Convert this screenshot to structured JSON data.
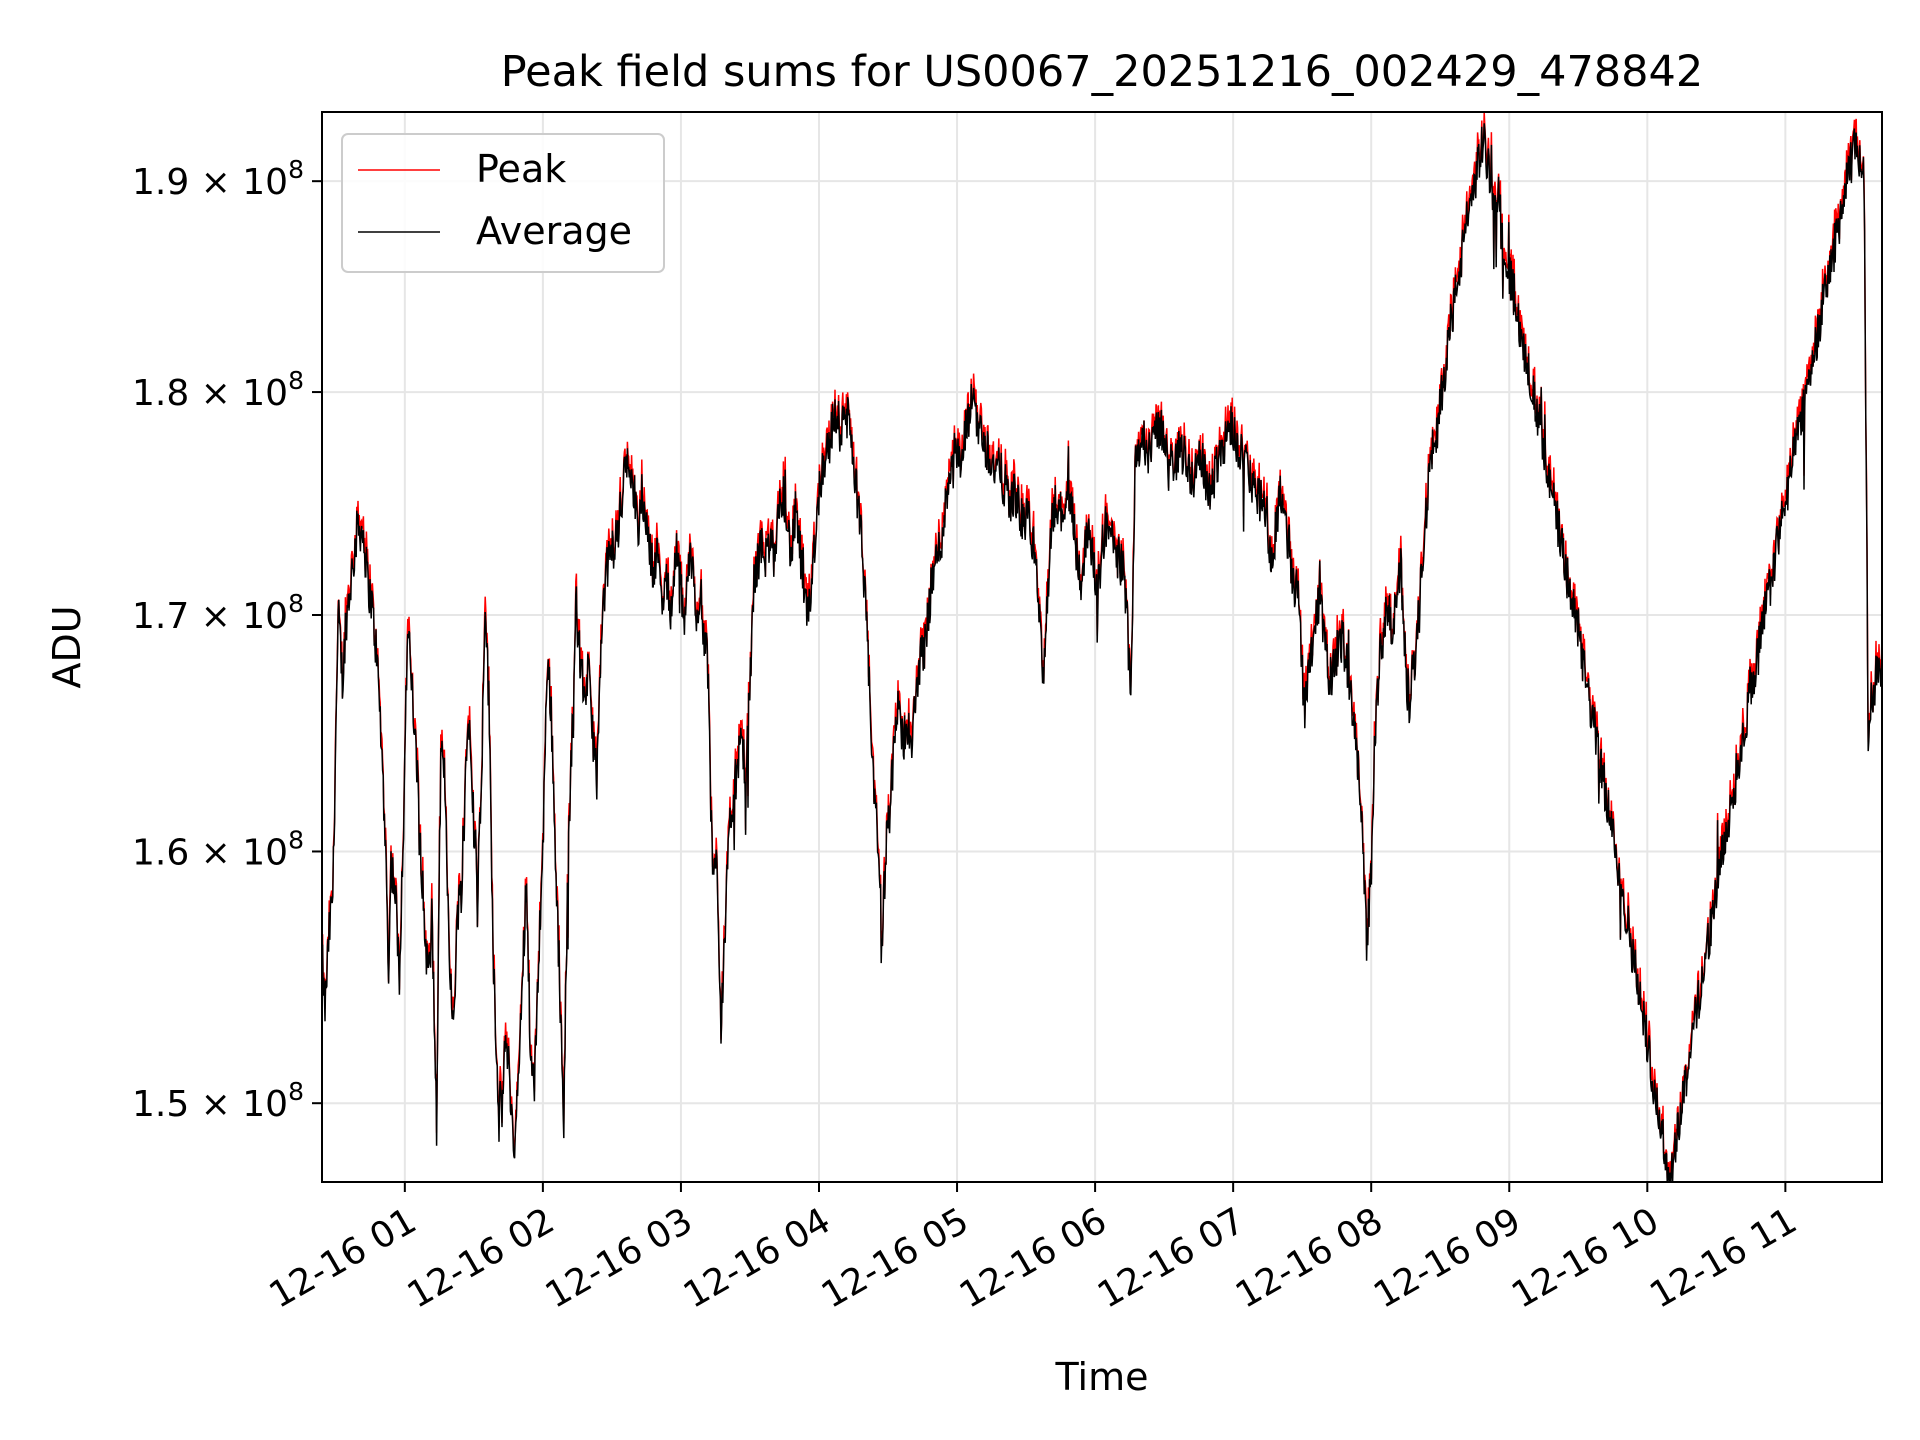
{
  "chart_data": {
    "type": "line",
    "title": "Peak field sums for US0067_20251216_002429_478842",
    "xlabel": "Time",
    "ylabel": "ADU",
    "yscale": "log",
    "ylim": [
      147000000,
      193400000
    ],
    "xlim": [
      0.4,
      11.7
    ],
    "grid": true,
    "legend_position": "top-left",
    "x_ticks": [
      {
        "value": 1,
        "label": "12-16 01"
      },
      {
        "value": 2,
        "label": "12-16 02"
      },
      {
        "value": 3,
        "label": "12-16 03"
      },
      {
        "value": 4,
        "label": "12-16 04"
      },
      {
        "value": 5,
        "label": "12-16 05"
      },
      {
        "value": 6,
        "label": "12-16 06"
      },
      {
        "value": 7,
        "label": "12-16 07"
      },
      {
        "value": 8,
        "label": "12-16 08"
      },
      {
        "value": 9,
        "label": "12-16 09"
      },
      {
        "value": 10,
        "label": "12-16 10"
      },
      {
        "value": 11,
        "label": "12-16 11"
      }
    ],
    "y_ticks": [
      {
        "value": 150000000,
        "mantissa": "1.5",
        "exponent": "8"
      },
      {
        "value": 160000000,
        "mantissa": "1.6",
        "exponent": "8"
      },
      {
        "value": 170000000,
        "mantissa": "1.7",
        "exponent": "8"
      },
      {
        "value": 180000000,
        "mantissa": "1.8",
        "exponent": "8"
      },
      {
        "value": 190000000,
        "mantissa": "1.9",
        "exponent": "8"
      }
    ],
    "y_tick_times": "×",
    "y_tick_base": "10",
    "x_unit": "hours after 2025-12-16 00:00",
    "average_points": [
      [
        0.4,
        155.8
      ],
      [
        0.42,
        153.5
      ],
      [
        0.45,
        156.5
      ],
      [
        0.48,
        158.5
      ],
      [
        0.5,
        165.0
      ],
      [
        0.52,
        170.0
      ],
      [
        0.55,
        167.0
      ],
      [
        0.57,
        169.5
      ],
      [
        0.6,
        171.0
      ],
      [
        0.63,
        172.5
      ],
      [
        0.66,
        174.0
      ],
      [
        0.7,
        173.5
      ],
      [
        0.73,
        171.5
      ],
      [
        0.76,
        170.5
      ],
      [
        0.8,
        168.0
      ],
      [
        0.83,
        164.5
      ],
      [
        0.86,
        160.5
      ],
      [
        0.88,
        155.0
      ],
      [
        0.9,
        159.5
      ],
      [
        0.93,
        158.5
      ],
      [
        0.96,
        155.0
      ],
      [
        0.99,
        161.0
      ],
      [
        1.02,
        169.5
      ],
      [
        1.05,
        167.0
      ],
      [
        1.08,
        164.0
      ],
      [
        1.11,
        161.0
      ],
      [
        1.14,
        157.0
      ],
      [
        1.17,
        155.0
      ],
      [
        1.2,
        156.5
      ],
      [
        1.23,
        149.0
      ],
      [
        1.26,
        164.0
      ],
      [
        1.29,
        163.0
      ],
      [
        1.32,
        156.5
      ],
      [
        1.35,
        152.5
      ],
      [
        1.38,
        157.5
      ],
      [
        1.41,
        158.5
      ],
      [
        1.44,
        163.5
      ],
      [
        1.47,
        166.0
      ],
      [
        1.5,
        161.0
      ],
      [
        1.53,
        159.0
      ],
      [
        1.56,
        164.0
      ],
      [
        1.58,
        171.0
      ],
      [
        1.61,
        166.0
      ],
      [
        1.64,
        156.0
      ],
      [
        1.67,
        151.0
      ],
      [
        1.7,
        149.5
      ],
      [
        1.73,
        152.5
      ],
      [
        1.76,
        151.0
      ],
      [
        1.79,
        148.0
      ],
      [
        1.82,
        150.5
      ],
      [
        1.85,
        154.5
      ],
      [
        1.88,
        159.0
      ],
      [
        1.91,
        152.0
      ],
      [
        1.94,
        150.5
      ],
      [
        1.97,
        156.0
      ],
      [
        2.0,
        160.0
      ],
      [
        2.03,
        168.0
      ],
      [
        2.06,
        166.0
      ],
      [
        2.09,
        160.0
      ],
      [
        2.12,
        155.0
      ],
      [
        2.15,
        149.0
      ],
      [
        2.18,
        159.0
      ],
      [
        2.21,
        164.5
      ],
      [
        2.24,
        170.5
      ],
      [
        2.27,
        168.0
      ],
      [
        2.3,
        166.5
      ],
      [
        2.33,
        167.5
      ],
      [
        2.36,
        165.0
      ],
      [
        2.39,
        163.0
      ],
      [
        2.42,
        168.0
      ],
      [
        2.45,
        171.5
      ],
      [
        2.48,
        172.5
      ],
      [
        2.51,
        173.0
      ],
      [
        2.54,
        173.5
      ],
      [
        2.57,
        175.0
      ],
      [
        2.6,
        176.5
      ],
      [
        2.63,
        177.0
      ],
      [
        2.66,
        175.5
      ],
      [
        2.69,
        173.5
      ],
      [
        2.72,
        175.5
      ],
      [
        2.75,
        174.0
      ],
      [
        2.78,
        172.5
      ],
      [
        2.81,
        172.0
      ],
      [
        2.84,
        173.0
      ],
      [
        2.87,
        170.5
      ],
      [
        2.9,
        171.5
      ],
      [
        2.93,
        170.0
      ],
      [
        2.96,
        173.0
      ],
      [
        2.99,
        172.0
      ],
      [
        3.02,
        169.5
      ],
      [
        3.05,
        172.0
      ],
      [
        3.08,
        172.5
      ],
      [
        3.11,
        170.0
      ],
      [
        3.14,
        171.0
      ],
      [
        3.17,
        169.0
      ],
      [
        3.2,
        167.5
      ],
      [
        3.23,
        158.5
      ],
      [
        3.26,
        160.0
      ],
      [
        3.29,
        153.0
      ],
      [
        3.32,
        157.0
      ],
      [
        3.35,
        160.5
      ],
      [
        3.38,
        162.5
      ],
      [
        3.41,
        163.5
      ],
      [
        3.44,
        164.5
      ],
      [
        3.47,
        163.0
      ],
      [
        3.5,
        167.0
      ],
      [
        3.53,
        171.5
      ],
      [
        3.56,
        172.5
      ],
      [
        3.59,
        173.0
      ],
      [
        3.62,
        172.5
      ],
      [
        3.65,
        173.5
      ],
      [
        3.68,
        172.0
      ],
      [
        3.71,
        174.5
      ],
      [
        3.74,
        175.5
      ],
      [
        3.77,
        174.0
      ],
      [
        3.8,
        172.5
      ],
      [
        3.83,
        174.5
      ],
      [
        3.86,
        173.0
      ],
      [
        3.89,
        171.0
      ],
      [
        3.92,
        169.5
      ],
      [
        3.95,
        172.0
      ],
      [
        3.98,
        174.0
      ],
      [
        4.01,
        176.0
      ],
      [
        4.04,
        177.0
      ],
      [
        4.07,
        177.5
      ],
      [
        4.1,
        178.5
      ],
      [
        4.13,
        179.0
      ],
      [
        4.16,
        178.0
      ],
      [
        4.19,
        179.0
      ],
      [
        4.22,
        178.5
      ],
      [
        4.25,
        177.0
      ],
      [
        4.28,
        175.0
      ],
      [
        4.31,
        173.0
      ],
      [
        4.34,
        170.0
      ],
      [
        4.37,
        166.0
      ],
      [
        4.4,
        162.5
      ],
      [
        4.43,
        160.0
      ],
      [
        4.46,
        156.5
      ],
      [
        4.49,
        161.0
      ],
      [
        4.52,
        162.0
      ],
      [
        4.55,
        165.0
      ],
      [
        4.58,
        166.0
      ],
      [
        4.61,
        164.5
      ],
      [
        4.64,
        165.5
      ],
      [
        4.67,
        164.0
      ],
      [
        4.7,
        166.5
      ],
      [
        4.73,
        168.0
      ],
      [
        4.76,
        168.5
      ],
      [
        4.79,
        170.0
      ],
      [
        4.82,
        171.5
      ],
      [
        4.85,
        172.5
      ],
      [
        4.88,
        173.0
      ],
      [
        4.91,
        174.5
      ],
      [
        4.94,
        176.0
      ],
      [
        4.97,
        177.5
      ],
      [
        5.0,
        177.0
      ],
      [
        5.03,
        176.5
      ],
      [
        5.06,
        178.0
      ],
      [
        5.09,
        179.0
      ],
      [
        5.12,
        180.0
      ],
      [
        5.15,
        178.5
      ],
      [
        5.18,
        178.0
      ],
      [
        5.21,
        177.5
      ],
      [
        5.24,
        177.0
      ],
      [
        5.27,
        176.5
      ],
      [
        5.3,
        176.5
      ],
      [
        5.33,
        176.0
      ],
      [
        5.36,
        175.5
      ],
      [
        5.39,
        175.0
      ],
      [
        5.42,
        175.5
      ],
      [
        5.45,
        174.5
      ],
      [
        5.48,
        174.0
      ],
      [
        5.51,
        174.5
      ],
      [
        5.54,
        173.5
      ],
      [
        5.57,
        172.5
      ],
      [
        5.6,
        169.5
      ],
      [
        5.63,
        167.5
      ],
      [
        5.66,
        171.0
      ],
      [
        5.69,
        174.5
      ],
      [
        5.72,
        175.0
      ],
      [
        5.75,
        174.5
      ],
      [
        5.78,
        175.0
      ],
      [
        5.81,
        175.5
      ],
      [
        5.84,
        174.5
      ],
      [
        5.87,
        172.5
      ],
      [
        5.9,
        171.5
      ],
      [
        5.93,
        173.0
      ],
      [
        5.96,
        174.0
      ],
      [
        5.99,
        172.0
      ],
      [
        6.02,
        171.0
      ],
      [
        6.05,
        173.0
      ],
      [
        6.08,
        174.0
      ],
      [
        6.11,
        173.5
      ],
      [
        6.14,
        173.0
      ],
      [
        6.17,
        172.5
      ],
      [
        6.2,
        172.0
      ],
      [
        6.23,
        170.0
      ],
      [
        6.26,
        167.0
      ],
      [
        6.29,
        177.0
      ],
      [
        6.32,
        177.5
      ],
      [
        6.35,
        178.0
      ],
      [
        6.38,
        177.0
      ],
      [
        6.41,
        177.5
      ],
      [
        6.44,
        178.0
      ],
      [
        6.47,
        178.5
      ],
      [
        6.5,
        177.5
      ],
      [
        6.53,
        177.0
      ],
      [
        6.56,
        176.5
      ],
      [
        6.59,
        177.0
      ],
      [
        6.62,
        177.5
      ],
      [
        6.65,
        177.0
      ],
      [
        6.68,
        176.5
      ],
      [
        6.71,
        176.0
      ],
      [
        6.74,
        176.5
      ],
      [
        6.77,
        177.0
      ],
      [
        6.8,
        176.0
      ],
      [
        6.83,
        175.5
      ],
      [
        6.86,
        176.0
      ],
      [
        6.89,
        177.0
      ],
      [
        6.92,
        177.5
      ],
      [
        6.95,
        178.0
      ],
      [
        6.98,
        178.5
      ],
      [
        7.01,
        178.0
      ],
      [
        7.04,
        177.5
      ],
      [
        7.07,
        177.0
      ],
      [
        7.1,
        176.5
      ],
      [
        7.13,
        176.0
      ],
      [
        7.16,
        175.5
      ],
      [
        7.19,
        175.0
      ],
      [
        7.22,
        175.5
      ],
      [
        7.25,
        174.0
      ],
      [
        7.28,
        172.0
      ],
      [
        7.31,
        174.0
      ],
      [
        7.34,
        175.5
      ],
      [
        7.37,
        174.5
      ],
      [
        7.4,
        173.0
      ],
      [
        7.43,
        171.0
      ],
      [
        7.46,
        171.5
      ],
      [
        7.49,
        169.0
      ],
      [
        7.52,
        166.0
      ],
      [
        7.55,
        168.0
      ],
      [
        7.58,
        169.0
      ],
      [
        7.61,
        170.5
      ],
      [
        7.64,
        170.0
      ],
      [
        7.67,
        168.5
      ],
      [
        7.7,
        167.0
      ],
      [
        7.73,
        168.0
      ],
      [
        7.76,
        168.5
      ],
      [
        7.79,
        169.0
      ],
      [
        7.82,
        168.0
      ],
      [
        7.85,
        166.5
      ],
      [
        7.88,
        165.5
      ],
      [
        7.91,
        163.0
      ],
      [
        7.94,
        160.0
      ],
      [
        7.97,
        156.0
      ],
      [
        8.0,
        160.0
      ],
      [
        8.03,
        165.0
      ],
      [
        8.06,
        168.0
      ],
      [
        8.09,
        169.0
      ],
      [
        8.12,
        170.5
      ],
      [
        8.15,
        169.0
      ],
      [
        8.18,
        170.5
      ],
      [
        8.21,
        172.5
      ],
      [
        8.24,
        169.0
      ],
      [
        8.27,
        166.0
      ],
      [
        8.3,
        167.5
      ],
      [
        8.33,
        168.5
      ],
      [
        8.36,
        172.0
      ],
      [
        8.39,
        174.0
      ],
      [
        8.42,
        176.0
      ],
      [
        8.45,
        177.5
      ],
      [
        8.48,
        178.5
      ],
      [
        8.51,
        180.0
      ],
      [
        8.54,
        181.5
      ],
      [
        8.57,
        183.0
      ],
      [
        8.6,
        184.0
      ],
      [
        8.63,
        185.5
      ],
      [
        8.66,
        186.5
      ],
      [
        8.69,
        188.0
      ],
      [
        8.72,
        189.0
      ],
      [
        8.75,
        190.0
      ],
      [
        8.78,
        191.0
      ],
      [
        8.81,
        192.0
      ],
      [
        8.84,
        191.0
      ],
      [
        8.87,
        190.0
      ],
      [
        8.9,
        189.0
      ],
      [
        8.93,
        188.0
      ],
      [
        8.96,
        187.0
      ],
      [
        8.99,
        186.0
      ],
      [
        9.02,
        185.0
      ],
      [
        9.05,
        184.0
      ],
      [
        9.08,
        183.0
      ],
      [
        9.11,
        182.0
      ],
      [
        9.14,
        181.0
      ],
      [
        9.17,
        180.0
      ],
      [
        9.2,
        179.0
      ],
      [
        9.23,
        178.0
      ],
      [
        9.26,
        177.0
      ],
      [
        9.29,
        176.0
      ],
      [
        9.32,
        175.0
      ],
      [
        9.35,
        174.0
      ],
      [
        9.38,
        173.0
      ],
      [
        9.41,
        172.0
      ],
      [
        9.44,
        171.0
      ],
      [
        9.47,
        170.0
      ],
      [
        9.5,
        169.0
      ],
      [
        9.53,
        168.0
      ],
      [
        9.56,
        167.0
      ],
      [
        9.59,
        166.0
      ],
      [
        9.62,
        165.0
      ],
      [
        9.65,
        164.0
      ],
      [
        9.68,
        163.0
      ],
      [
        9.71,
        162.0
      ],
      [
        9.74,
        161.0
      ],
      [
        9.77,
        160.0
      ],
      [
        9.8,
        159.0
      ],
      [
        9.83,
        158.0
      ],
      [
        9.86,
        157.0
      ],
      [
        9.89,
        156.0
      ],
      [
        9.92,
        155.0
      ],
      [
        9.95,
        154.0
      ],
      [
        9.98,
        153.0
      ],
      [
        10.01,
        152.0
      ],
      [
        10.04,
        151.0
      ],
      [
        10.07,
        150.0
      ],
      [
        10.1,
        149.0
      ],
      [
        10.13,
        148.0
      ],
      [
        10.16,
        147.0
      ],
      [
        10.19,
        148.0
      ],
      [
        10.22,
        149.0
      ],
      [
        10.25,
        150.0
      ],
      [
        10.28,
        151.0
      ],
      [
        10.31,
        152.0
      ],
      [
        10.34,
        153.0
      ],
      [
        10.37,
        154.0
      ],
      [
        10.4,
        155.0
      ],
      [
        10.43,
        156.0
      ],
      [
        10.46,
        157.0
      ],
      [
        10.49,
        158.0
      ],
      [
        10.52,
        159.0
      ],
      [
        10.55,
        160.0
      ],
      [
        10.58,
        161.0
      ],
      [
        10.61,
        162.0
      ],
      [
        10.64,
        163.0
      ],
      [
        10.67,
        164.0
      ],
      [
        10.7,
        165.0
      ],
      [
        10.73,
        166.0
      ],
      [
        10.76,
        167.0
      ],
      [
        10.79,
        168.0
      ],
      [
        10.82,
        169.0
      ],
      [
        10.85,
        170.0
      ],
      [
        10.88,
        171.0
      ],
      [
        10.91,
        172.0
      ],
      [
        10.94,
        173.0
      ],
      [
        10.97,
        174.0
      ],
      [
        11.0,
        175.0
      ],
      [
        11.03,
        176.0
      ],
      [
        11.06,
        177.0
      ],
      [
        11.09,
        178.0
      ],
      [
        11.12,
        179.0
      ],
      [
        11.15,
        180.0
      ],
      [
        11.18,
        181.0
      ],
      [
        11.21,
        182.0
      ],
      [
        11.24,
        183.0
      ],
      [
        11.27,
        184.0
      ],
      [
        11.3,
        185.0
      ],
      [
        11.33,
        186.0
      ],
      [
        11.36,
        187.0
      ],
      [
        11.39,
        188.0
      ],
      [
        11.42,
        189.0
      ],
      [
        11.45,
        190.0
      ],
      [
        11.48,
        191.0
      ],
      [
        11.51,
        192.0
      ],
      [
        11.54,
        191.0
      ],
      [
        11.57,
        190.0
      ],
      [
        11.6,
        165.0
      ],
      [
        11.63,
        166.5
      ],
      [
        11.66,
        167.5
      ],
      [
        11.7,
        168.0
      ]
    ],
    "series": [
      {
        "name": "Peak",
        "color": "#ff0000"
      },
      {
        "name": "Average",
        "color": "#000000"
      }
    ]
  }
}
